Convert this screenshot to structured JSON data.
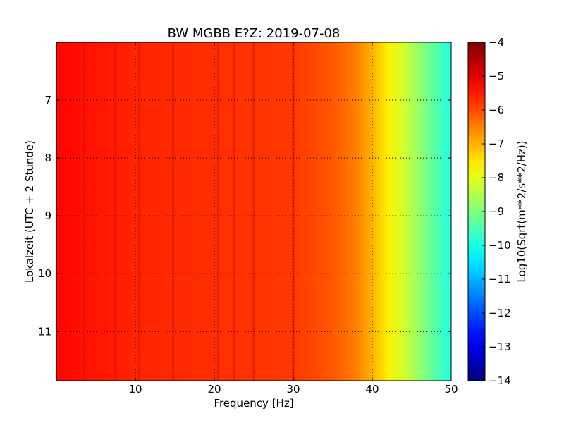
{
  "chart_data": {
    "type": "heatmap",
    "title": "BW MGBB E?Z: 2019-07-08",
    "xlabel": "Frequency [Hz]",
    "ylabel": "Lokalzeit (UTC + 2 Stunde)",
    "xlim": [
      0,
      50
    ],
    "ylim": [
      6.0,
      11.85
    ],
    "y_inverted": true,
    "x_ticks": [
      10,
      20,
      30,
      40,
      50
    ],
    "x_tick_labels": [
      "10",
      "20",
      "30",
      "40",
      "50"
    ],
    "y_ticks": [
      7,
      8,
      9,
      10,
      11
    ],
    "y_tick_labels": [
      "7",
      "8",
      "9",
      "10",
      "11"
    ],
    "grid": true,
    "colormap": "jet",
    "colorbar": {
      "label": "Log10(Sqrt(m**2/s**2/Hz))",
      "range": [
        -14,
        -4
      ],
      "ticks": [
        -4,
        -5,
        -6,
        -7,
        -8,
        -9,
        -10,
        -11,
        -12,
        -13,
        -14
      ],
      "tick_labels": [
        "−4",
        "−5",
        "−6",
        "−7",
        "−8",
        "−9",
        "−10",
        "−11",
        "−12",
        "−13",
        "−14"
      ]
    },
    "value_profile_vs_frequency": {
      "frequency_hz": [
        0,
        10,
        20,
        30,
        35,
        38,
        40,
        42,
        44,
        46,
        48,
        50
      ],
      "log10_amplitude": [
        -5.3,
        -5.6,
        -5.7,
        -5.8,
        -6.1,
        -6.5,
        -7.0,
        -7.6,
        -8.2,
        -8.8,
        -9.4,
        -10.0
      ]
    },
    "persistent_spectral_lines_hz": [
      3.5,
      7.5,
      10.5,
      14.8,
      20.5,
      22.5,
      25.0,
      30.0
    ],
    "time_range_hours": [
      6.0,
      11.85
    ]
  }
}
